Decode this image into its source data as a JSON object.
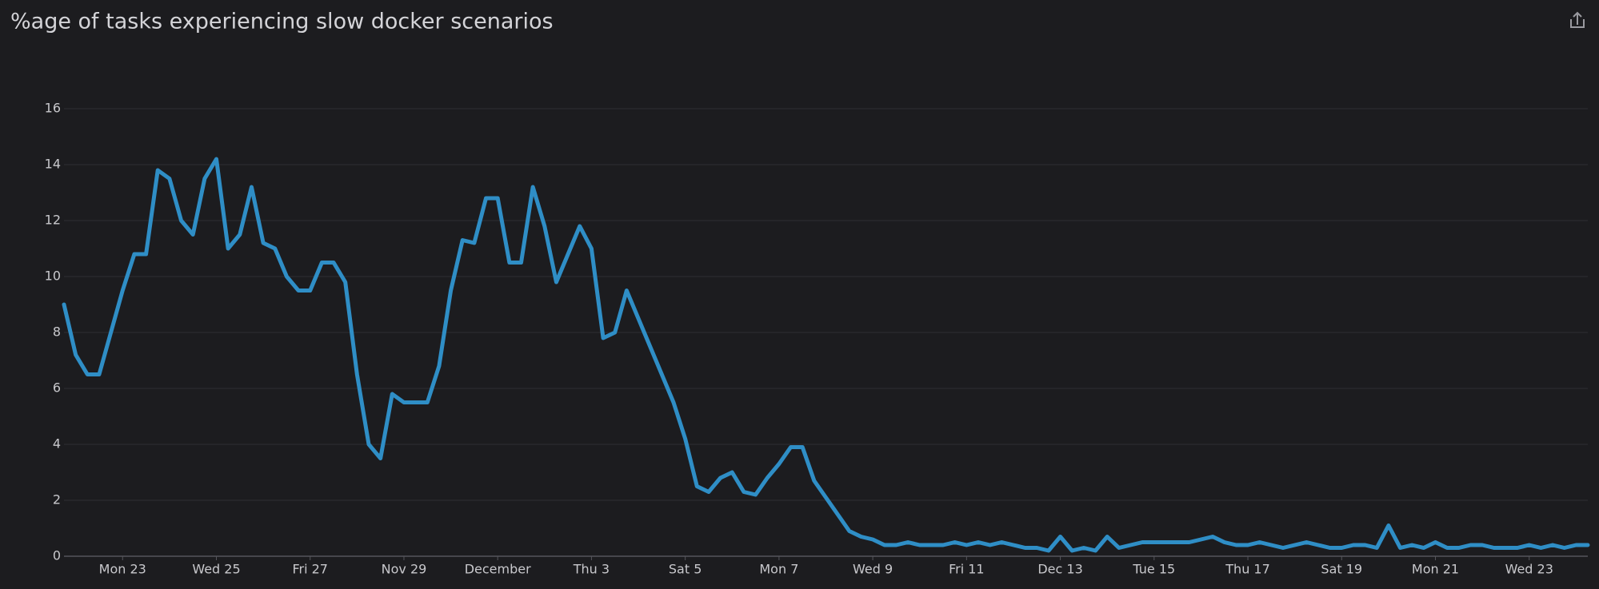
{
  "chart_data": {
    "type": "line",
    "title": "%age of tasks experiencing slow docker scenarios",
    "series": [
      {
        "color": "#2f8ec6",
        "values": [
          9.0,
          7.2,
          6.5,
          6.5,
          8.0,
          9.5,
          10.8,
          10.8,
          13.8,
          13.5,
          12.0,
          11.5,
          13.5,
          14.2,
          11.0,
          11.5,
          13.2,
          11.2,
          11.0,
          10.0,
          9.5,
          9.5,
          10.5,
          10.5,
          9.8,
          6.5,
          4.0,
          3.5,
          5.8,
          5.5,
          5.5,
          5.5,
          6.8,
          9.5,
          11.3,
          11.2,
          12.8,
          12.8,
          10.5,
          10.5,
          13.2,
          11.8,
          9.8,
          10.8,
          11.8,
          11.0,
          7.8,
          8.0,
          9.5,
          8.5,
          7.5,
          6.5,
          5.5,
          4.2,
          2.5,
          2.3,
          2.8,
          3.0,
          2.3,
          2.2,
          2.8,
          3.3,
          3.9,
          3.9,
          2.7,
          2.1,
          1.5,
          0.9,
          0.7,
          0.6,
          0.4,
          0.4,
          0.5,
          0.4,
          0.4,
          0.4,
          0.5,
          0.4,
          0.5,
          0.4,
          0.5,
          0.4,
          0.3,
          0.3,
          0.2,
          0.7,
          0.2,
          0.3,
          0.2,
          0.7,
          0.3,
          0.4,
          0.5,
          0.5,
          0.5,
          0.5,
          0.5,
          0.6,
          0.7,
          0.5,
          0.4,
          0.4,
          0.5,
          0.4,
          0.3,
          0.4,
          0.5,
          0.4,
          0.3,
          0.3,
          0.4,
          0.4,
          0.3,
          1.1,
          0.3,
          0.4,
          0.3,
          0.5,
          0.3,
          0.3,
          0.4,
          0.4,
          0.3,
          0.3,
          0.3,
          0.4,
          0.3,
          0.4,
          0.3,
          0.4,
          0.4
        ]
      }
    ],
    "xlim": [
      0,
      130
    ],
    "xticks": [
      {
        "value": 5,
        "label": "Mon 23"
      },
      {
        "value": 13,
        "label": "Wed 25"
      },
      {
        "value": 21,
        "label": "Fri 27"
      },
      {
        "value": 29,
        "label": "Nov 29"
      },
      {
        "value": 37,
        "label": "December"
      },
      {
        "value": 45,
        "label": "Thu 3"
      },
      {
        "value": 53,
        "label": "Sat 5"
      },
      {
        "value": 61,
        "label": "Mon 7"
      },
      {
        "value": 69,
        "label": "Wed 9"
      },
      {
        "value": 77,
        "label": "Fri 11"
      },
      {
        "value": 85,
        "label": "Dec 13"
      },
      {
        "value": 93,
        "label": "Tue 15"
      },
      {
        "value": 101,
        "label": "Thu 17"
      },
      {
        "value": 109,
        "label": "Sat 19"
      },
      {
        "value": 117,
        "label": "Mon 21"
      },
      {
        "value": 125,
        "label": "Wed 23"
      }
    ],
    "ylim": [
      0,
      16
    ],
    "yticks": [
      0,
      2,
      4,
      6,
      8,
      10,
      12,
      14,
      16
    ],
    "grid": true
  }
}
